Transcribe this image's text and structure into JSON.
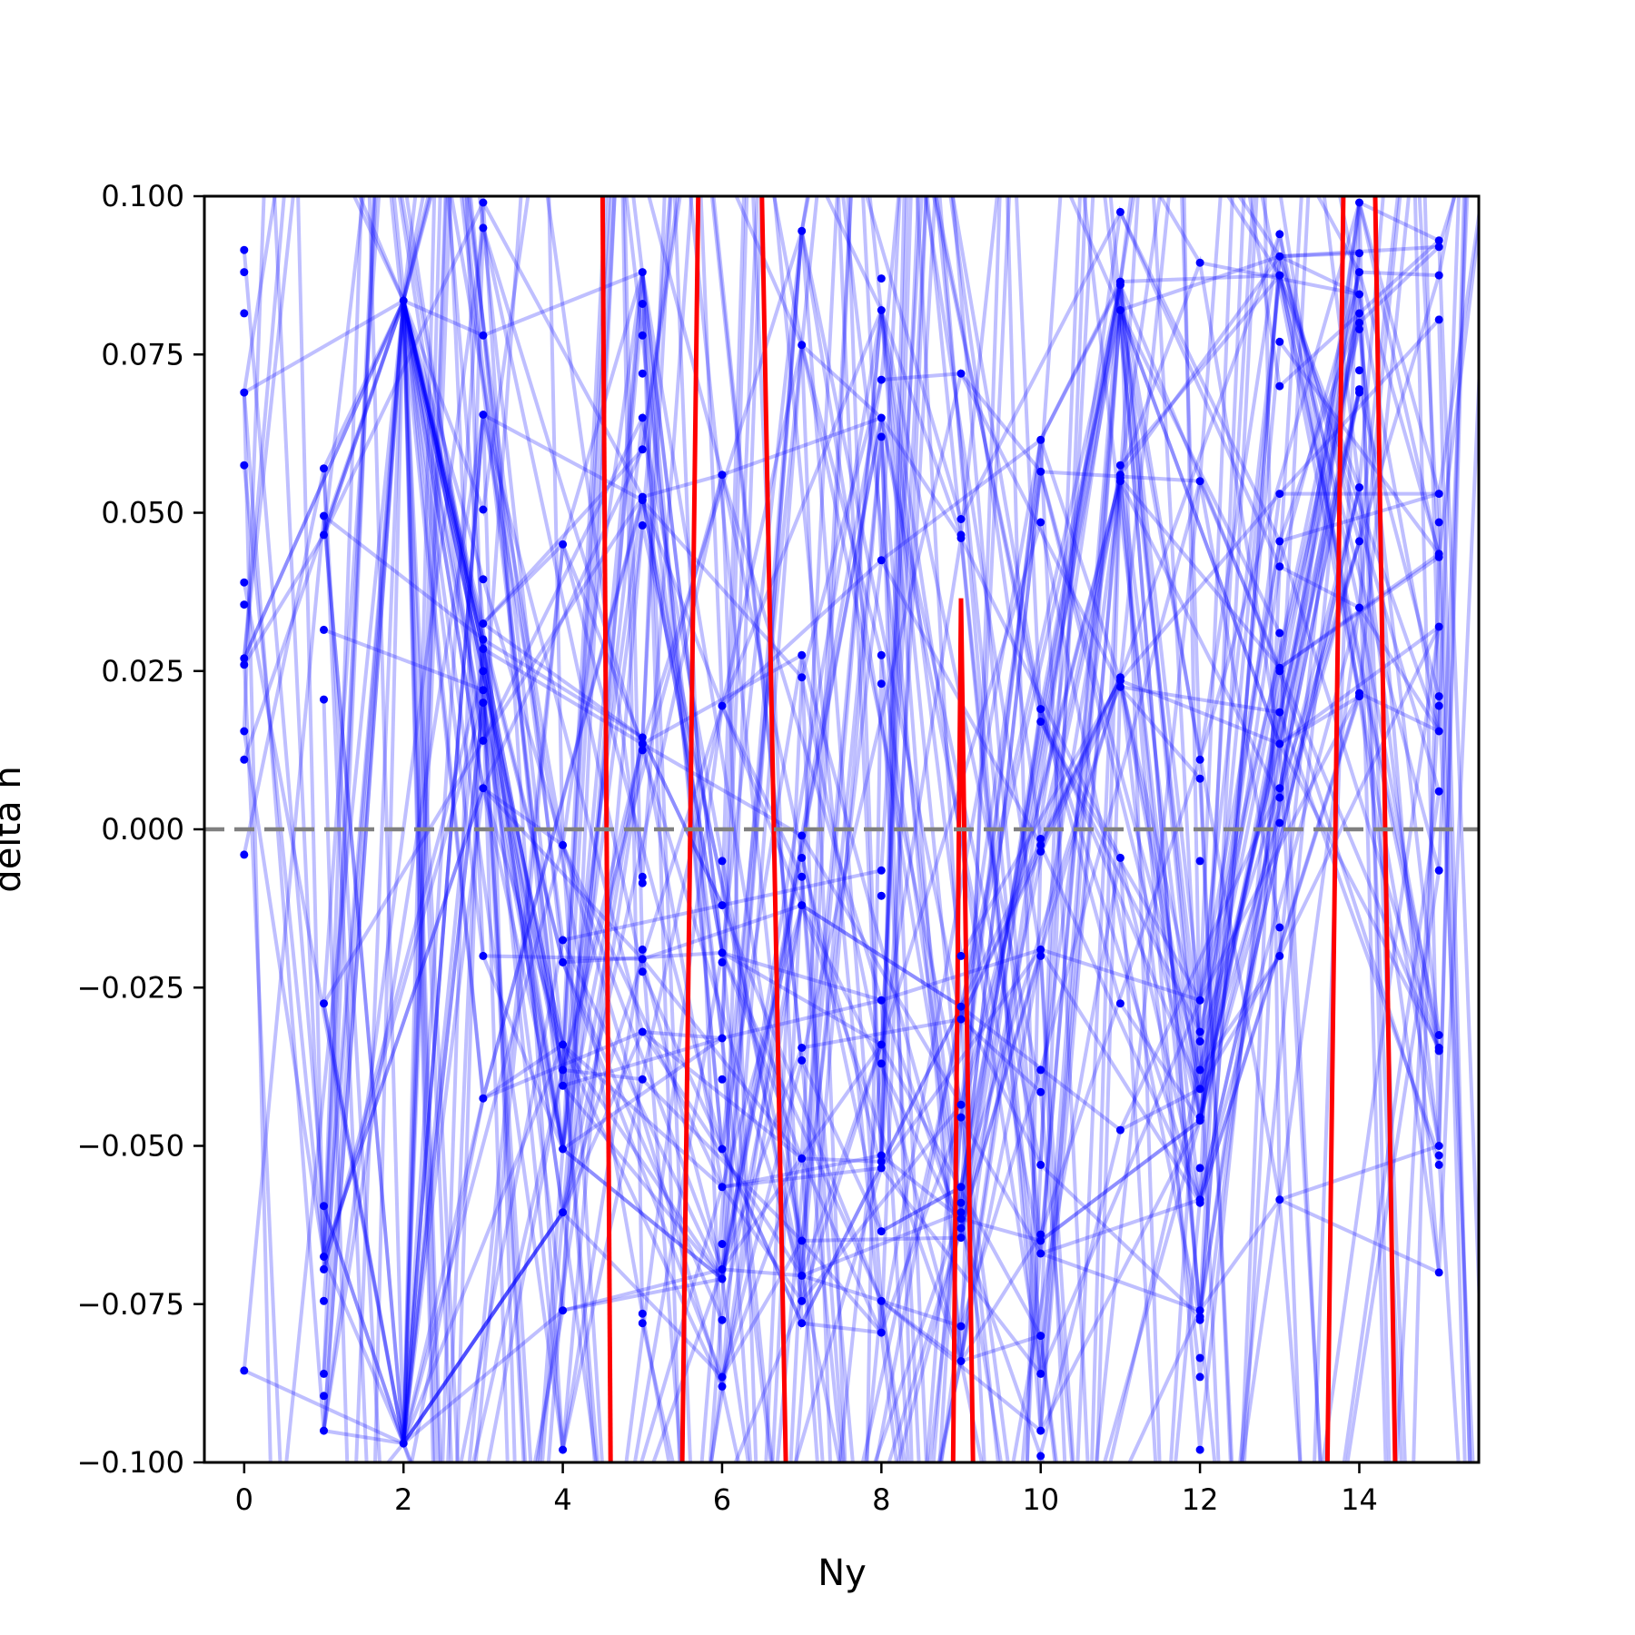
{
  "chart_data": {
    "type": "line",
    "xlabel": "Ny",
    "ylabel": "delta n",
    "xlim": [
      -0.5,
      15.5
    ],
    "ylim": [
      -0.1,
      0.1
    ],
    "x_ticks": [
      0,
      2,
      4,
      6,
      8,
      10,
      12,
      14
    ],
    "x_tick_labels": [
      "0",
      "2",
      "4",
      "6",
      "8",
      "10",
      "12",
      "14"
    ],
    "y_ticks": [
      -0.1,
      -0.075,
      -0.05,
      -0.025,
      0.0,
      0.025,
      0.05,
      0.075,
      0.1
    ],
    "y_tick_labels": [
      "−0.100",
      "−0.075",
      "−0.050",
      "−0.025",
      "0.000",
      "0.025",
      "0.050",
      "0.075",
      "0.100"
    ],
    "reference_line": {
      "y": 0.0,
      "style": "dashed",
      "color": "#808080"
    },
    "colors": {
      "blue": "#0000ff",
      "red": "#ff0000",
      "reference": "#808080"
    },
    "blue_points": [
      {
        "x": 0,
        "y": [
          0.0915,
          0.088,
          0.0815,
          0.069,
          0.0575,
          0.039,
          0.0355,
          0.027,
          0.026,
          0.0155,
          0.011,
          -0.004,
          -0.0855
        ]
      },
      {
        "x": 1,
        "y": [
          0.057,
          0.0495,
          0.0465,
          0.0315,
          0.0205,
          -0.0275,
          -0.0595,
          -0.0675,
          -0.0695,
          -0.0745,
          -0.086,
          -0.0895,
          -0.095
        ]
      },
      {
        "x": 2,
        "y": [
          0.0835,
          -0.097
        ]
      },
      {
        "x": 3,
        "y": [
          0.099,
          0.095,
          0.078,
          0.0655,
          0.0505,
          0.0395,
          0.0325,
          0.03,
          0.0285,
          0.025,
          0.022,
          0.02,
          0.014,
          0.0065,
          -0.02,
          -0.0425
        ]
      },
      {
        "x": 4,
        "y": [
          0.045,
          -0.0025,
          -0.0175,
          -0.021,
          -0.034,
          -0.038,
          -0.0405,
          -0.0505,
          -0.0605,
          -0.076,
          -0.098
        ]
      },
      {
        "x": 5,
        "y": [
          0.088,
          0.083,
          0.078,
          0.072,
          0.065,
          0.06,
          0.0525,
          0.052,
          0.048,
          0.0145,
          0.0135,
          0.0125,
          -0.0075,
          -0.0085,
          -0.019,
          -0.0205,
          -0.0225,
          -0.032,
          -0.0395,
          -0.0765,
          -0.078
        ]
      },
      {
        "x": 6,
        "y": [
          0.056,
          0.0195,
          -0.005,
          -0.012,
          -0.0195,
          -0.021,
          -0.033,
          -0.0395,
          -0.0505,
          -0.0565,
          -0.0655,
          -0.0695,
          -0.071,
          -0.0775,
          -0.0865,
          -0.088
        ]
      },
      {
        "x": 7,
        "y": [
          0.0945,
          0.0765,
          0.0275,
          0.024,
          -0.001,
          -0.0045,
          -0.0075,
          -0.012,
          -0.0345,
          -0.0365,
          -0.052,
          -0.065,
          -0.0705,
          -0.0745,
          -0.078
        ]
      },
      {
        "x": 8,
        "y": [
          0.087,
          0.082,
          0.071,
          0.065,
          0.062,
          0.0425,
          0.0275,
          0.023,
          -0.0065,
          -0.0105,
          -0.027,
          -0.034,
          -0.037,
          -0.0515,
          -0.0525,
          -0.0535,
          -0.0635,
          -0.0745,
          -0.0795
        ]
      },
      {
        "x": 9,
        "y": [
          0.072,
          0.049,
          0.0465,
          0.046,
          -0.02,
          -0.028,
          -0.03,
          -0.0435,
          -0.0455,
          -0.0565,
          -0.059,
          -0.0605,
          -0.0615,
          -0.063,
          -0.0645,
          -0.0785,
          -0.084
        ]
      },
      {
        "x": 10,
        "y": [
          0.0615,
          0.0565,
          0.0485,
          0.019,
          0.017,
          -0.0015,
          -0.0025,
          -0.0035,
          -0.019,
          -0.02,
          -0.038,
          -0.0415,
          -0.053,
          -0.064,
          -0.065,
          -0.067,
          -0.08,
          -0.086,
          -0.095,
          -0.099
        ]
      },
      {
        "x": 11,
        "y": [
          0.0975,
          0.0865,
          0.086,
          0.082,
          0.0575,
          0.056,
          0.0555,
          0.055,
          0.024,
          0.0235,
          0.0225,
          -0.0045,
          -0.0275,
          -0.0475
        ]
      },
      {
        "x": 12,
        "y": [
          0.0895,
          0.055,
          0.011,
          0.008,
          -0.005,
          -0.027,
          -0.032,
          -0.0335,
          -0.038,
          -0.041,
          -0.0455,
          -0.046,
          -0.0535,
          -0.0585,
          -0.059,
          -0.076,
          -0.077,
          -0.0775,
          -0.0835,
          -0.0865,
          -0.098
        ]
      },
      {
        "x": 13,
        "y": [
          0.094,
          0.0905,
          0.0875,
          0.0875,
          0.077,
          0.07,
          0.053,
          0.0455,
          0.0415,
          0.031,
          0.0255,
          0.025,
          0.0185,
          0.0135,
          0.0065,
          0.005,
          0.001,
          -0.0155,
          -0.02,
          -0.0585
        ]
      },
      {
        "x": 14,
        "y": [
          0.099,
          0.091,
          0.088,
          0.0845,
          0.0815,
          0.08,
          0.079,
          0.0725,
          0.0695,
          0.069,
          0.054,
          0.0455,
          0.035,
          0.0215,
          0.021
        ]
      },
      {
        "x": 15,
        "y": [
          0.093,
          0.092,
          0.0875,
          0.0805,
          0.053,
          0.0485,
          0.0435,
          0.043,
          0.032,
          0.021,
          0.0195,
          0.0155,
          0.006,
          -0.0065,
          -0.0325,
          -0.0345,
          -0.035,
          -0.05,
          -0.0515,
          -0.053,
          -0.07
        ]
      }
    ],
    "red_series": [
      {
        "name": "",
        "x": [
          4.5,
          4.6
        ],
        "y": [
          0.1,
          -0.1
        ]
      },
      {
        "name": "",
        "x": [
          5.5,
          5.7
        ],
        "y": [
          -0.1,
          0.1
        ]
      },
      {
        "name": "",
        "x": [
          6.5,
          6.8
        ],
        "y": [
          0.1,
          -0.1
        ]
      },
      {
        "name": "",
        "x": [
          8.9,
          9.0,
          9.15
        ],
        "y": [
          -0.1,
          0.0365,
          -0.1
        ]
      },
      {
        "name": "",
        "x": [
          13.6,
          13.8
        ],
        "y": [
          -0.1,
          0.1
        ]
      },
      {
        "name": "",
        "x": [
          14.2,
          14.45
        ],
        "y": [
          0.1,
          -0.1
        ]
      }
    ]
  }
}
